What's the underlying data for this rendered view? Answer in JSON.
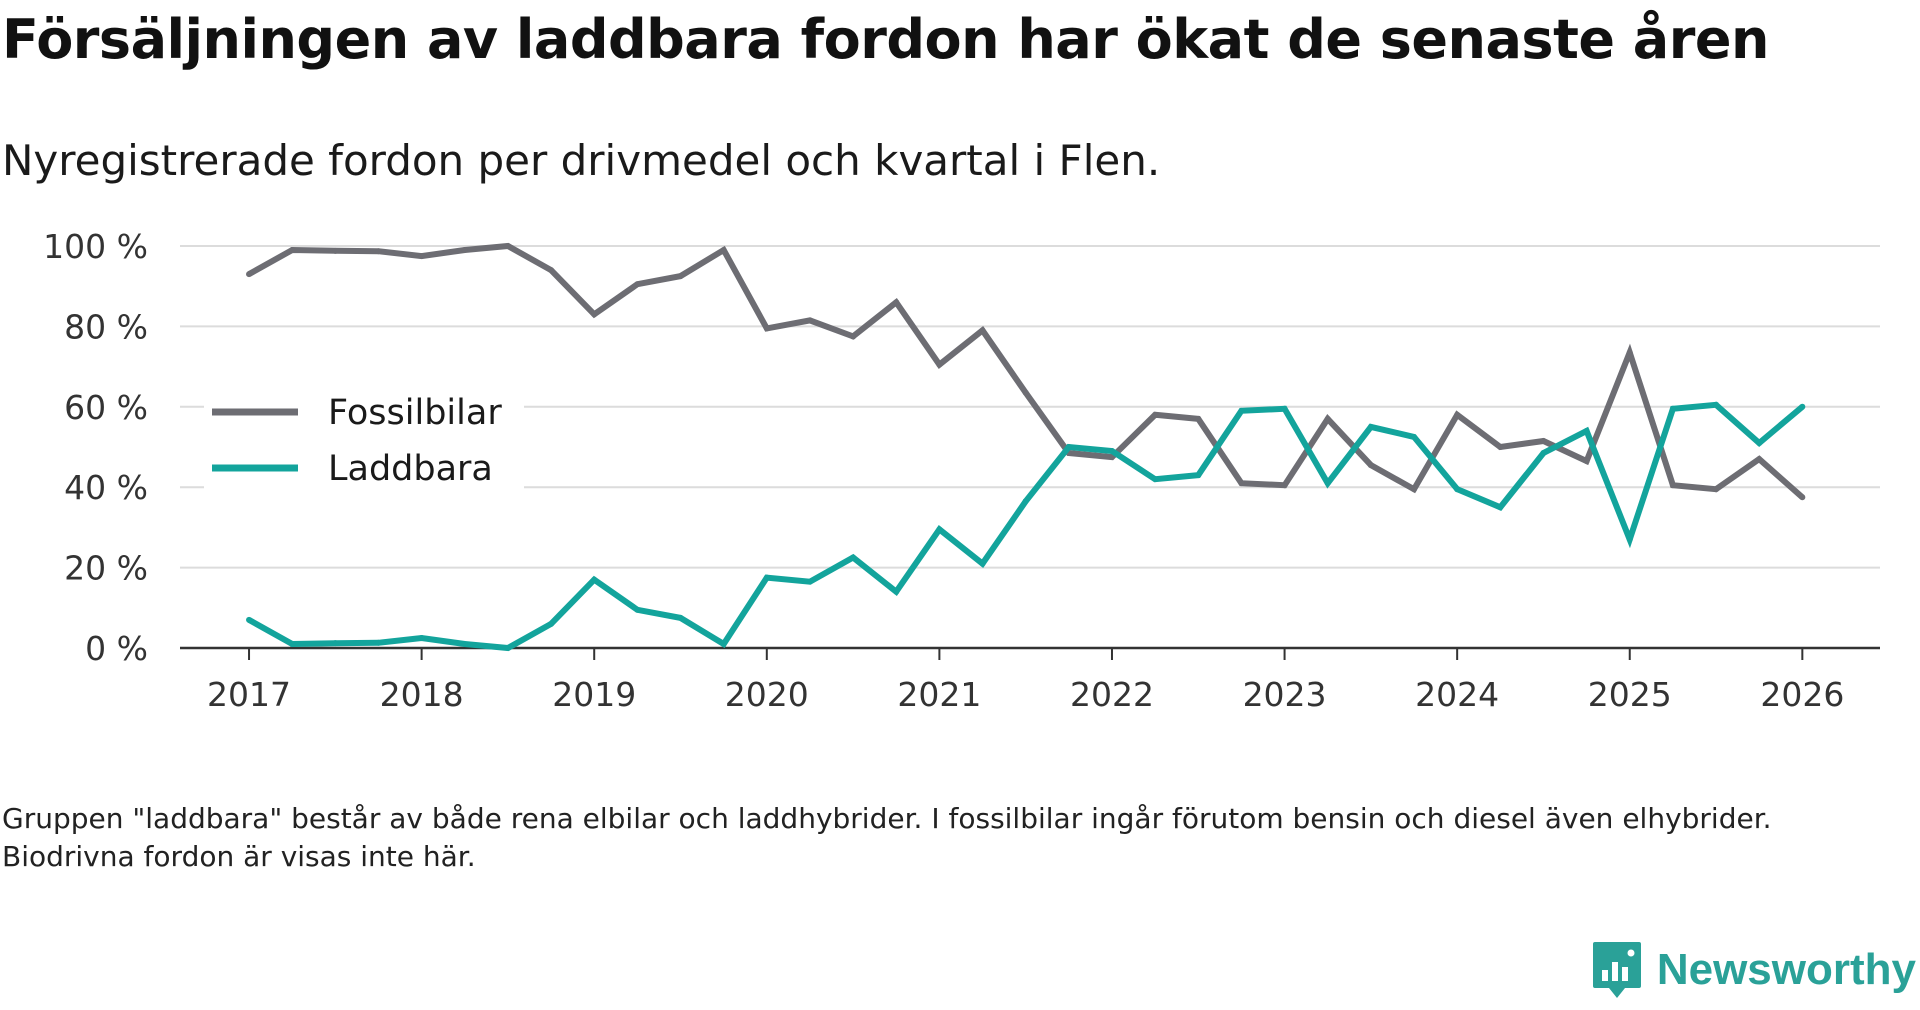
{
  "title": "Försäljningen av laddbara fordon har ökat de senaste åren",
  "subtitle": "Nyregistrerade fordon per drivmedel och kvartal i Flen.",
  "footnote": "Gruppen \"laddbara\" består av både rena elbilar och laddhybrider. I fossilbilar ingår förutom bensin och diesel även elhybrider. Biodrivna fordon är visas inte här.",
  "brand": {
    "name": "Newsworthy",
    "color": "#2aa198"
  },
  "chart_data": {
    "type": "line",
    "title": "Försäljningen av laddbara fordon har ökat de senaste åren",
    "subtitle": "Nyregistrerade fordon per drivmedel och kvartal i Flen.",
    "xlabel": "",
    "ylabel": "",
    "xlim": [
      2016.6,
      2026.45
    ],
    "ylim": [
      0,
      100
    ],
    "grid": true,
    "legend_position": "left-middle",
    "y_ticks": [
      0,
      20,
      40,
      60,
      80,
      100
    ],
    "y_tick_labels": [
      "0 %",
      "20 %",
      "40 %",
      "60 %",
      "80 %",
      "100 %"
    ],
    "x_ticks": [
      2017,
      2018,
      2019,
      2020,
      2021,
      2022,
      2023,
      2024,
      2025,
      2026
    ],
    "x_tick_labels": [
      "2017",
      "2018",
      "2019",
      "2020",
      "2021",
      "2022",
      "2023",
      "2024",
      "2025",
      "2026"
    ],
    "x": [
      2017.0,
      2017.25,
      2017.5,
      2017.75,
      2018.0,
      2018.25,
      2018.5,
      2018.75,
      2019.0,
      2019.25,
      2019.5,
      2019.75,
      2020.0,
      2020.25,
      2020.5,
      2020.75,
      2021.0,
      2021.25,
      2021.5,
      2021.75,
      2022.0,
      2022.25,
      2022.5,
      2022.75,
      2023.0,
      2023.25,
      2023.5,
      2023.75,
      2024.0,
      2024.25,
      2024.5,
      2024.75,
      2025.0,
      2025.25,
      2025.5,
      2025.75,
      2026.0
    ],
    "series": [
      {
        "name": "Fossilbilar",
        "color": "#6d6d73",
        "values": [
          93,
          99,
          98.8,
          98.7,
          97.5,
          99,
          100,
          94,
          83,
          90.5,
          92.5,
          99,
          79.5,
          81.5,
          77.5,
          86,
          70.5,
          79,
          63.5,
          48.5,
          47.5,
          58,
          57,
          41,
          40.5,
          57,
          45.5,
          39.5,
          58,
          50,
          51.5,
          46.5,
          73.5,
          40.5,
          39.5,
          47,
          37.5
        ]
      },
      {
        "name": "Laddbara",
        "color": "#13a49c",
        "values": [
          7,
          1,
          1.2,
          1.3,
          2.5,
          1,
          0,
          6,
          17,
          9.5,
          7.5,
          1,
          17.5,
          16.5,
          22.5,
          14,
          29.5,
          21,
          36.5,
          50,
          49,
          42,
          43,
          59,
          59.5,
          41,
          55,
          52.5,
          39.5,
          35,
          48.5,
          54,
          27,
          59.5,
          60.5,
          51,
          60
        ]
      }
    ]
  }
}
